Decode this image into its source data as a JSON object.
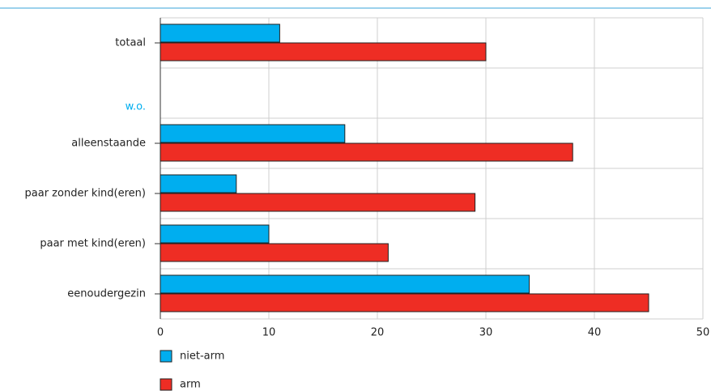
{
  "chart_data": {
    "type": "hbar",
    "categories": [
      "totaal",
      "w.o.",
      "alleenstaande",
      "paar zonder kind(eren)",
      "paar met kind(eren)",
      "eenoudergezin"
    ],
    "series": [
      {
        "name": "niet-arm",
        "color": "#00aeef",
        "values": [
          11,
          null,
          17,
          7,
          10,
          34
        ]
      },
      {
        "name": "arm",
        "color": "#ee2d24",
        "values": [
          30,
          null,
          38,
          29,
          21,
          45
        ]
      }
    ],
    "xlim": [
      0,
      50
    ],
    "xticks": [
      0,
      10,
      20,
      30,
      40,
      50
    ],
    "grid": true
  }
}
